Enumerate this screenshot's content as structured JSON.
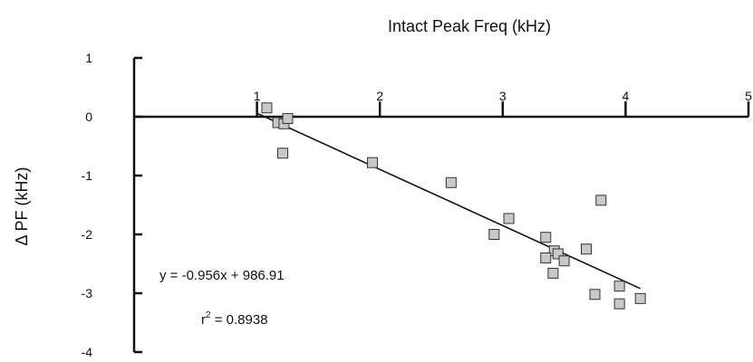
{
  "chart_data": {
    "type": "scatter",
    "title": "",
    "xlabel": "Intact Peak Freq (kHz)",
    "ylabel": "Δ PF (kHz)",
    "xlim": [
      0,
      5
    ],
    "ylim": [
      -4,
      1
    ],
    "x_ticks": [
      "1",
      "2",
      "3",
      "4",
      "5"
    ],
    "y_ticks": [
      "1",
      "0",
      "-1",
      "-2",
      "-3",
      "-4"
    ],
    "x_axis_position": "top",
    "grid": false,
    "legend": "none",
    "marker": {
      "shape": "square",
      "fill": "#c8c8c8",
      "stroke": "#333333"
    },
    "line_color": "#111111",
    "points": [
      {
        "x": 1.08,
        "y": 0.15
      },
      {
        "x": 1.17,
        "y": -0.1
      },
      {
        "x": 1.22,
        "y": -0.12
      },
      {
        "x": 1.25,
        "y": -0.03
      },
      {
        "x": 1.21,
        "y": -0.62
      },
      {
        "x": 1.94,
        "y": -0.78
      },
      {
        "x": 2.58,
        "y": -1.12
      },
      {
        "x": 3.05,
        "y": -1.73
      },
      {
        "x": 2.93,
        "y": -2.0
      },
      {
        "x": 3.35,
        "y": -2.05
      },
      {
        "x": 3.8,
        "y": -1.42
      },
      {
        "x": 3.42,
        "y": -2.28
      },
      {
        "x": 3.45,
        "y": -2.33
      },
      {
        "x": 3.35,
        "y": -2.4
      },
      {
        "x": 3.5,
        "y": -2.45
      },
      {
        "x": 3.68,
        "y": -2.25
      },
      {
        "x": 3.41,
        "y": -2.66
      },
      {
        "x": 3.75,
        "y": -3.02
      },
      {
        "x": 3.95,
        "y": -2.88
      },
      {
        "x": 3.95,
        "y": -3.18
      },
      {
        "x": 4.12,
        "y": -3.09
      }
    ],
    "trendline": {
      "x": [
        1.0,
        4.12
      ],
      "y": [
        0.06,
        -2.92
      ]
    },
    "annotations": {
      "equation": "y = -0.956x + 986.91",
      "r2_base": "r",
      "r2_exp": "2",
      "r2_value": " = 0.8938"
    }
  }
}
